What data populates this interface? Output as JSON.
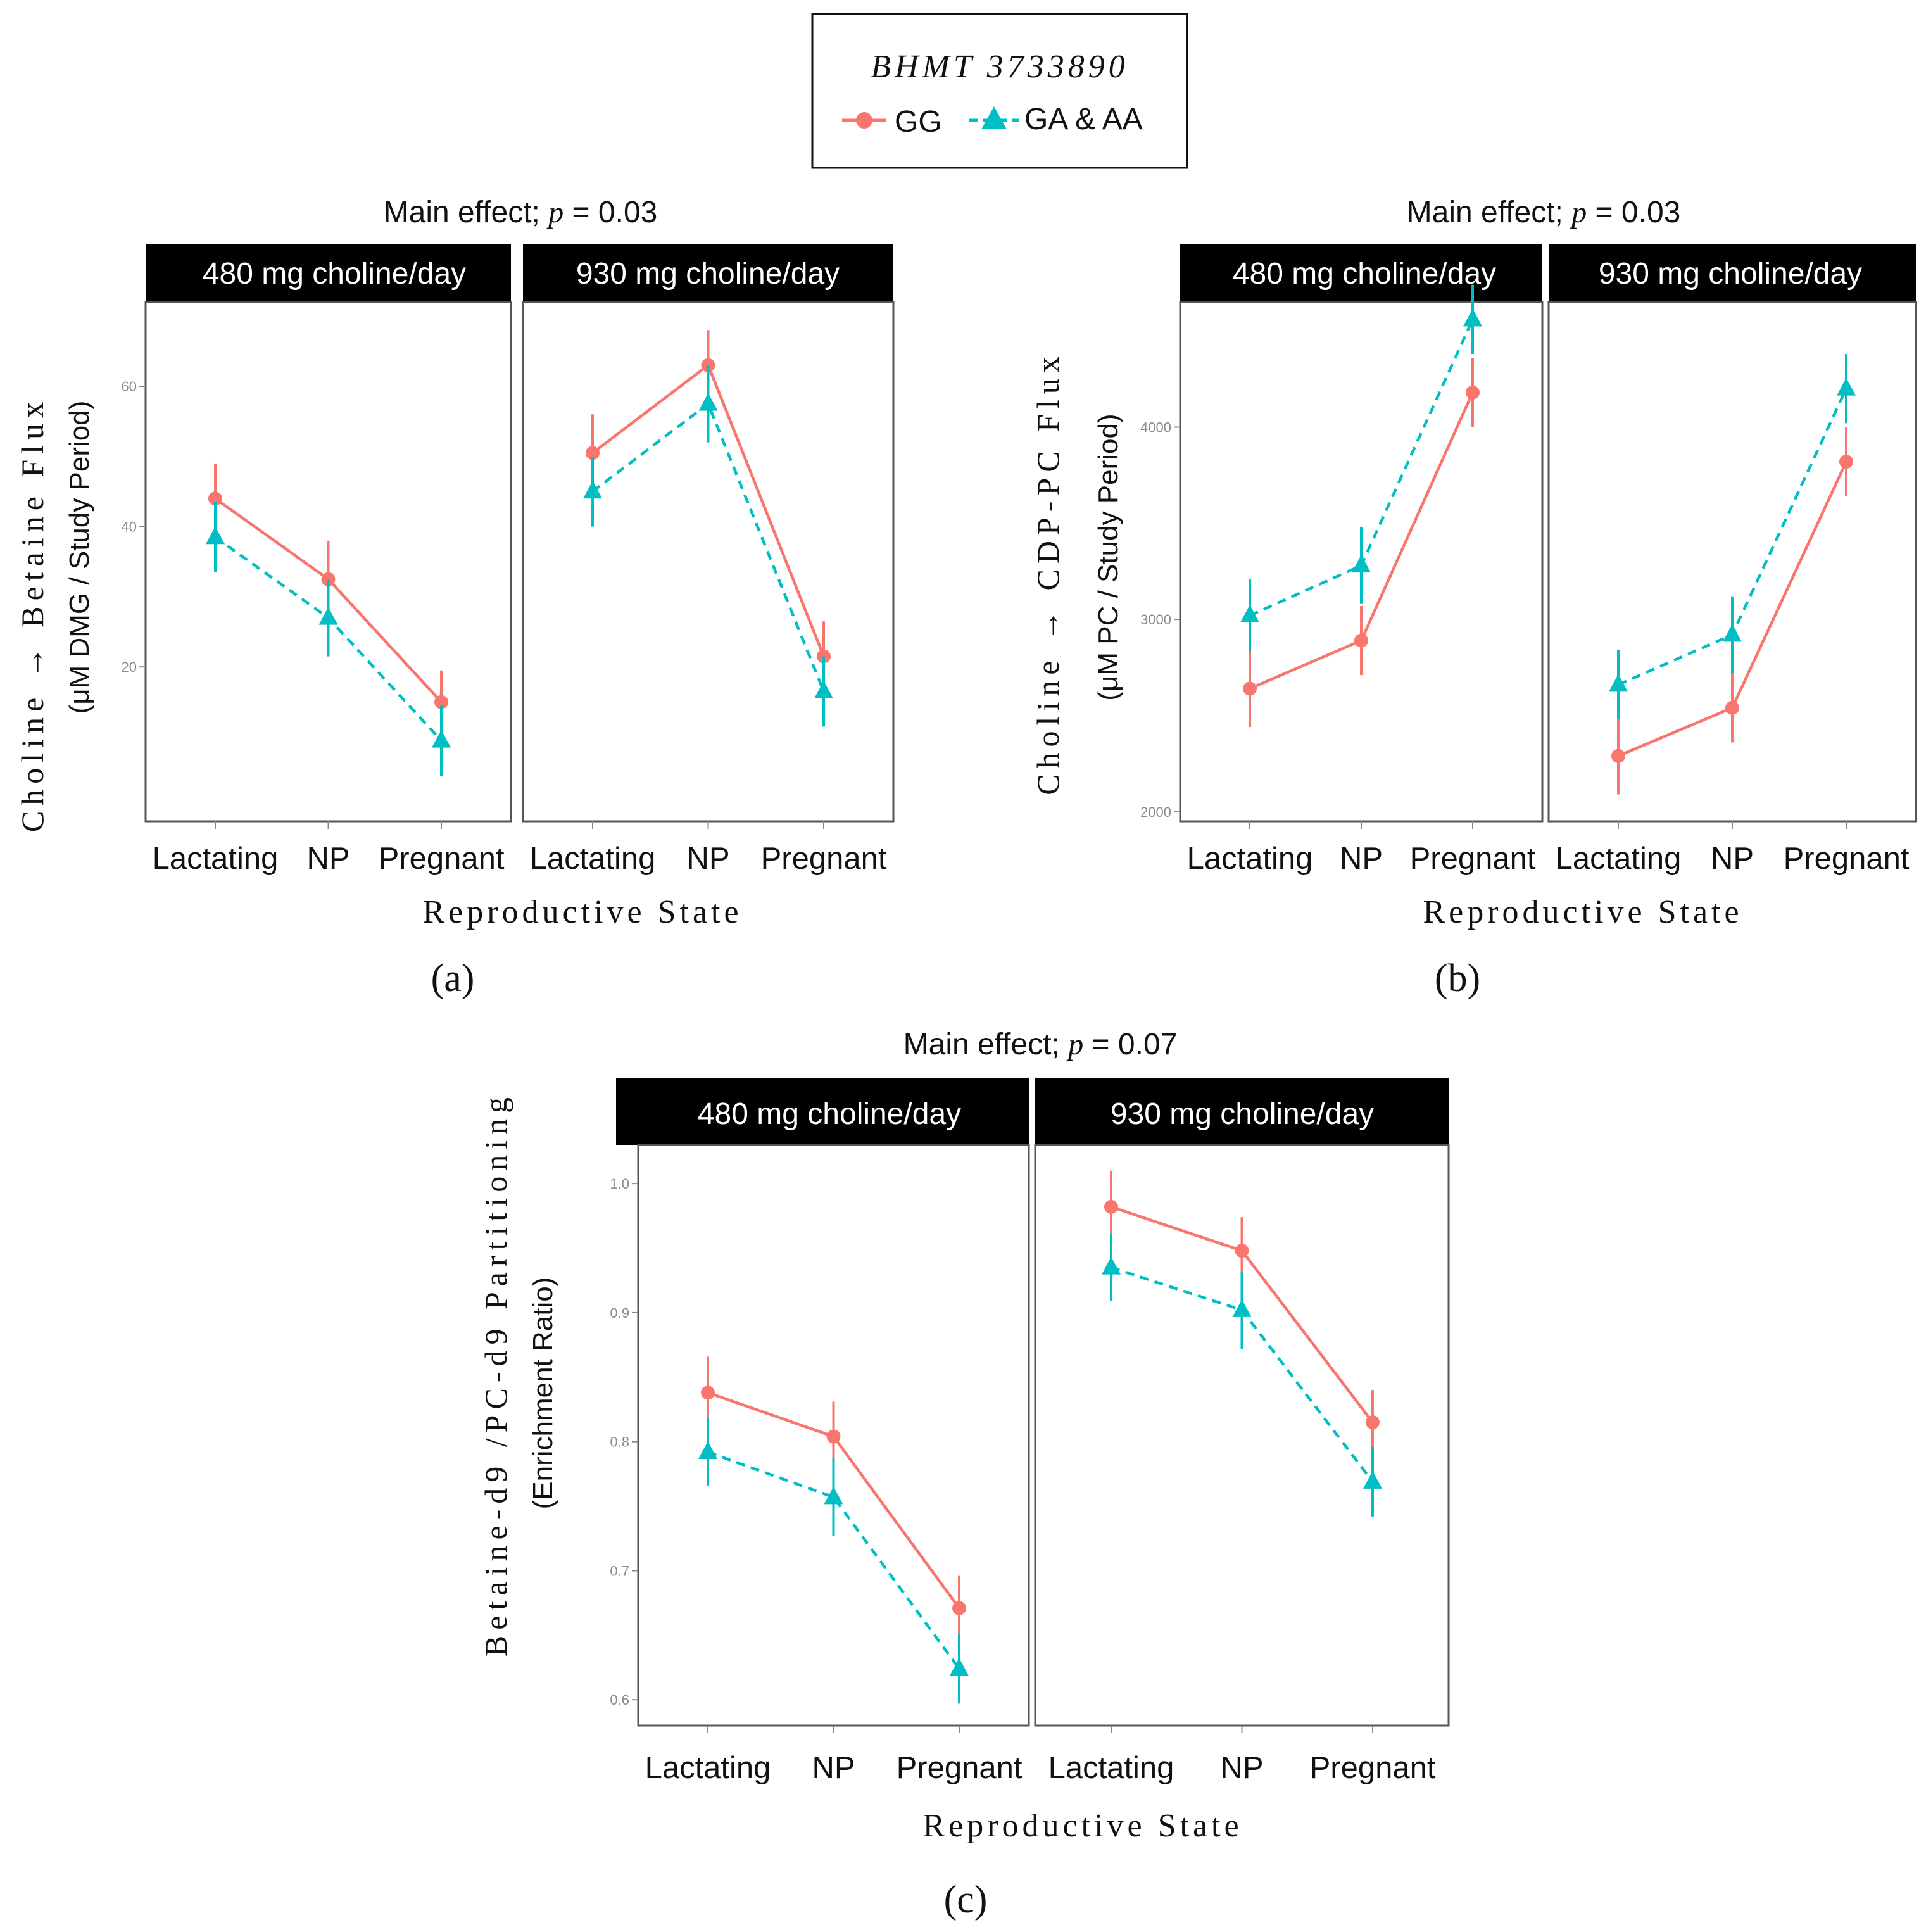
{
  "legend": {
    "title": "BHMT 3733890",
    "entries": [
      {
        "label": "GG",
        "color": "#F8766D",
        "shape": "circle",
        "linetype": "solid"
      },
      {
        "label": "GA & AA",
        "color": "#00BFC4",
        "shape": "triangle",
        "linetype": "dashed"
      }
    ]
  },
  "chart_data": [
    {
      "type": "line",
      "panel_label": "(a)",
      "subtitle_prefix": "Main effect; ",
      "subtitle_p": "p",
      "subtitle_suffix": " = 0.03",
      "ylabel": "Choline → Betaine Flux",
      "ylabel_sub": "(μM DMG / Study Period)",
      "xlabel": "Reproductive State",
      "categories": [
        "Lactating",
        "NP",
        "Pregnant"
      ],
      "ylim": [
        -2,
        72
      ],
      "yticks": [
        20,
        40,
        60
      ],
      "ytick_labels": [
        "20",
        "40",
        "60"
      ],
      "facets": [
        {
          "label": "480 mg choline/day",
          "series": [
            {
              "name": "GG",
              "values": [
                44,
                32.5,
                15
              ],
              "err": [
                5,
                5.5,
                4.5
              ]
            },
            {
              "name": "GA & AA",
              "values": [
                38.5,
                27,
                9.5
              ],
              "err": [
                5,
                5.5,
                5
              ]
            }
          ]
        },
        {
          "label": "930 mg choline/day",
          "series": [
            {
              "name": "GG",
              "values": [
                50.5,
                63,
                21.5
              ],
              "err": [
                5.5,
                5,
                5
              ]
            },
            {
              "name": "GA & AA",
              "values": [
                45,
                57.5,
                16.5
              ],
              "err": [
                5,
                5.5,
                5
              ]
            }
          ]
        }
      ]
    },
    {
      "type": "line",
      "panel_label": "(b)",
      "subtitle_prefix": "Main effect; ",
      "subtitle_p": "p",
      "subtitle_suffix": " = 0.03",
      "ylabel": "Choline → CDP-PC Flux",
      "ylabel_sub": "(μM PC / Study Period)",
      "xlabel": "Reproductive State",
      "categories": [
        "Lactating",
        "NP",
        "Pregnant"
      ],
      "ylim": [
        1950,
        4650
      ],
      "yticks": [
        2000,
        3000,
        4000
      ],
      "ytick_labels": [
        "2000",
        "3000",
        "4000"
      ],
      "facets": [
        {
          "label": "480 mg choline/day",
          "series": [
            {
              "name": "GG",
              "values": [
                2640,
                2890,
                4180
              ],
              "err": [
                200,
                180,
                180
              ]
            },
            {
              "name": "GA & AA",
              "values": [
                3020,
                3280,
                4560
              ],
              "err": [
                190,
                200,
                180
              ]
            }
          ]
        },
        {
          "label": "930 mg choline/day",
          "series": [
            {
              "name": "GG",
              "values": [
                2290,
                2540,
                3820
              ],
              "err": [
                200,
                180,
                180
              ]
            },
            {
              "name": "GA & AA",
              "values": [
                2660,
                2920,
                4200
              ],
              "err": [
                180,
                200,
                180
              ]
            }
          ]
        }
      ]
    },
    {
      "type": "line",
      "panel_label": "(c)",
      "subtitle_prefix": "Main effect; ",
      "subtitle_p": "p",
      "subtitle_suffix": " = 0.07",
      "ylabel": "Betaine-d9 /PC-d9 Partitioning",
      "ylabel_sub": "(Enrichment Ratio)",
      "xlabel": "Reproductive State",
      "categories": [
        "Lactating",
        "NP",
        "Pregnant"
      ],
      "ylim": [
        0.58,
        1.03
      ],
      "yticks": [
        0.6,
        0.7,
        0.8,
        0.9,
        1.0
      ],
      "ytick_labels": [
        "0.6",
        "0.7",
        "0.8",
        "0.9",
        "1.0"
      ],
      "facets": [
        {
          "label": "480 mg choline/day",
          "series": [
            {
              "name": "GG",
              "values": [
                0.838,
                0.804,
                0.671
              ],
              "err": [
                0.028,
                0.027,
                0.025
              ]
            },
            {
              "name": "GA & AA",
              "values": [
                0.792,
                0.757,
                0.624
              ],
              "err": [
                0.026,
                0.03,
                0.027
              ]
            }
          ]
        },
        {
          "label": "930 mg choline/day",
          "series": [
            {
              "name": "GG",
              "values": [
                0.982,
                0.948,
                0.815
              ],
              "err": [
                0.028,
                0.026,
                0.025
              ]
            },
            {
              "name": "GA & AA",
              "values": [
                0.935,
                0.902,
                0.769
              ],
              "err": [
                0.026,
                0.03,
                0.027
              ]
            }
          ]
        }
      ]
    }
  ]
}
